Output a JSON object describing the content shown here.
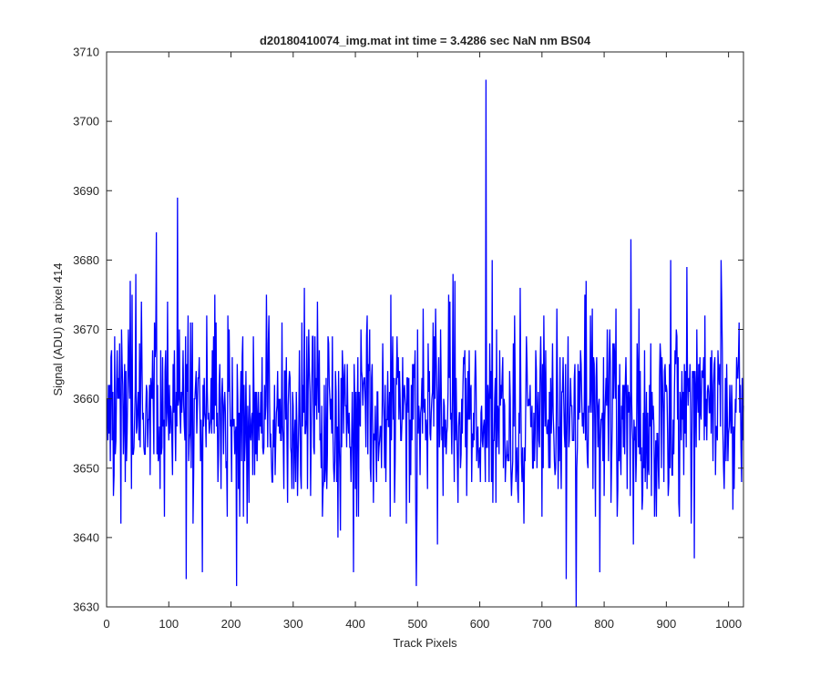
{
  "chart_data": {
    "type": "line",
    "title": "d20180410074_img.mat int time = 3.4286 sec  NaN nm BS04",
    "xlabel": "Track Pixels",
    "ylabel": "Signal (ADU) at pixel 414",
    "xlim": [
      0,
      1024
    ],
    "ylim": [
      3630,
      3710
    ],
    "xticks": [
      0,
      100,
      200,
      300,
      400,
      500,
      600,
      700,
      800,
      900,
      1000
    ],
    "yticks": [
      3630,
      3640,
      3650,
      3660,
      3670,
      3680,
      3690,
      3700,
      3710
    ],
    "grid": false,
    "series_color": "#0000ff",
    "series": [
      {
        "x_start": 1,
        "x_step": 1,
        "mean_level": 3658,
        "noise_sd": 7,
        "point_count": 1024,
        "spikes": [
          {
            "x": 80,
            "y": 3684
          },
          {
            "x": 114,
            "y": 3689
          },
          {
            "x": 128,
            "y": 3634
          },
          {
            "x": 154,
            "y": 3635
          },
          {
            "x": 209,
            "y": 3633
          },
          {
            "x": 610,
            "y": 3706
          },
          {
            "x": 620,
            "y": 3680
          },
          {
            "x": 755,
            "y": 3630
          },
          {
            "x": 843,
            "y": 3683
          },
          {
            "x": 988,
            "y": 3680
          },
          {
            "x": 560,
            "y": 3677
          },
          {
            "x": 47,
            "y": 3678
          }
        ]
      }
    ]
  }
}
